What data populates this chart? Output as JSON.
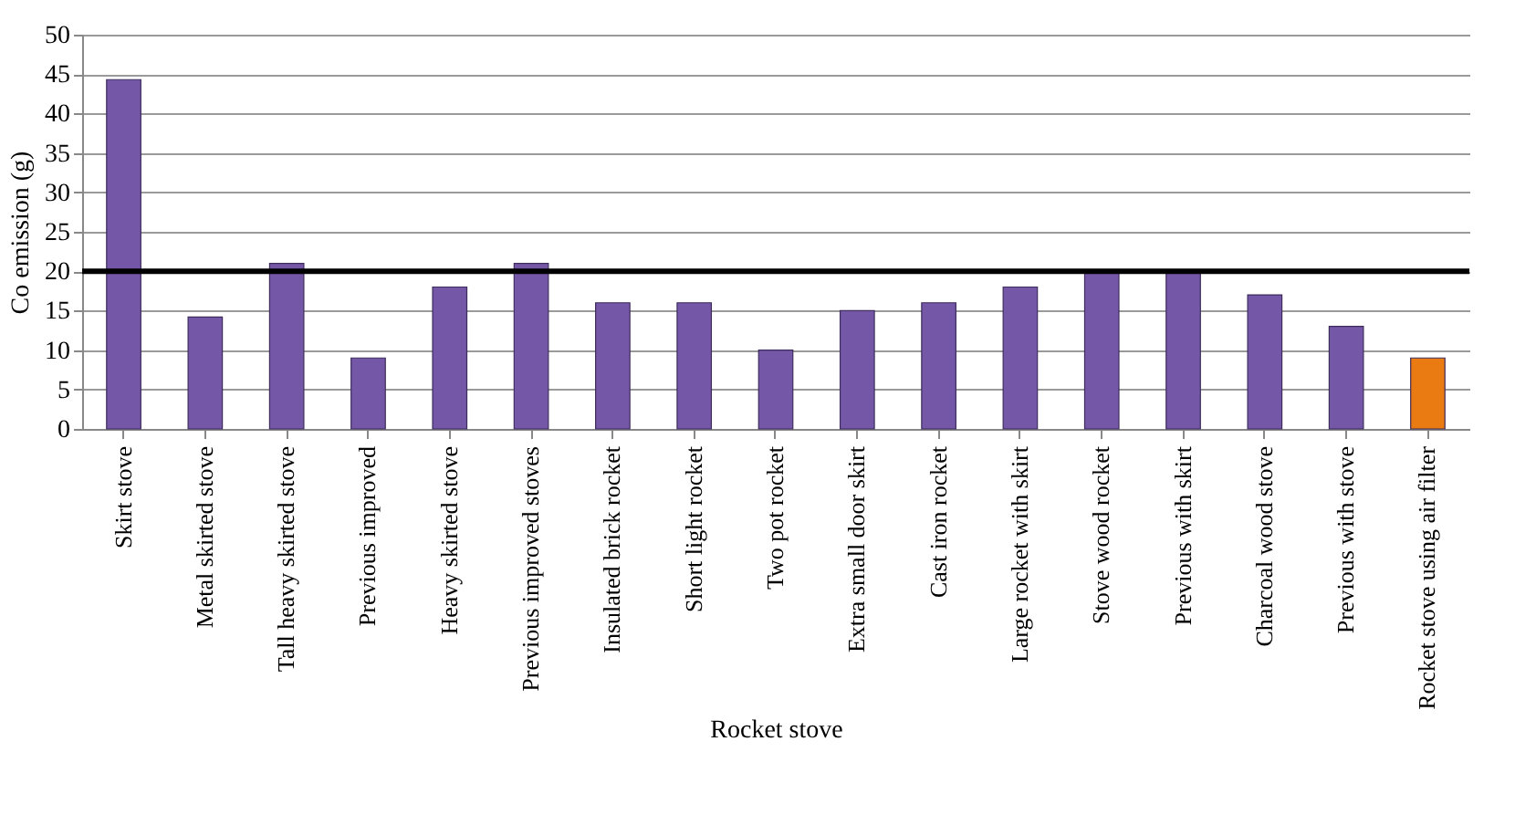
{
  "chart_data": {
    "type": "bar",
    "xlabel": "Rocket stove",
    "ylabel": "Co emission (g)",
    "categories": [
      "Skirt stove",
      "Metal skirted stove",
      "Tall heavy skirted stove",
      "Previous improved",
      "Heavy skirted stove",
      "Previous improved stoves",
      "Insulated brick rocket",
      "Short light rocket",
      "Two pot rocket",
      "Extra small door skirt",
      "Cast iron rocket",
      "Large rocket with skirt",
      "Stove wood rocket",
      "Previous with skirt",
      "Charcoal wood stove",
      "Previous with stove",
      "Rocket stove using air filter"
    ],
    "values": [
      44.3,
      14.2,
      21,
      9,
      18,
      21,
      16,
      16,
      10,
      15,
      16,
      18,
      20,
      20,
      17,
      13,
      9
    ],
    "colors": [
      "#7457a6",
      "#7457a6",
      "#7457a6",
      "#7457a6",
      "#7457a6",
      "#7457a6",
      "#7457a6",
      "#7457a6",
      "#7457a6",
      "#7457a6",
      "#7457a6",
      "#7457a6",
      "#7457a6",
      "#7457a6",
      "#7457a6",
      "#7457a6",
      "#ea7a12"
    ],
    "ylim": [
      0,
      50
    ],
    "yticks": [
      0,
      5,
      10,
      15,
      20,
      25,
      30,
      35,
      40,
      45,
      50
    ],
    "grid": "y",
    "ref_lines": [
      {
        "axis": "y",
        "value": 20,
        "color": "#000000"
      }
    ]
  }
}
